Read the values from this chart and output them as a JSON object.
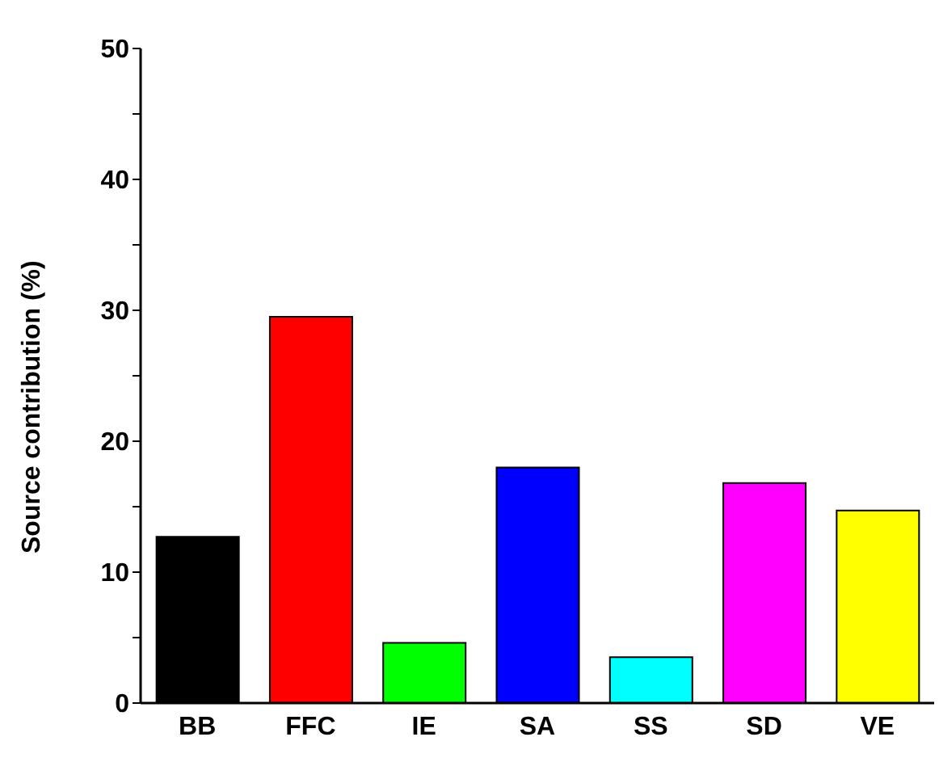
{
  "chart_data": {
    "type": "bar",
    "ylabel": "Source contribution (%)",
    "categories": [
      "BB",
      "FFC",
      "IE",
      "SA",
      "SS",
      "SD",
      "VE"
    ],
    "values": [
      12.7,
      29.5,
      4.6,
      18.0,
      3.5,
      16.8,
      14.7
    ],
    "colors": [
      "#000000",
      "#ff0000",
      "#00ff00",
      "#0000ff",
      "#00ffff",
      "#ff00ff",
      "#ffff00"
    ],
    "ylim": [
      0,
      50
    ],
    "yticks": [
      0,
      {
        "value": 5,
        "label": null
      },
      10,
      {
        "value": 15,
        "label": null
      },
      20,
      {
        "value": 25,
        "label": null
      },
      30,
      {
        "value": 35,
        "label": null
      },
      40,
      {
        "value": 45,
        "label": null
      },
      50
    ],
    "grid": false,
    "legend": false
  }
}
